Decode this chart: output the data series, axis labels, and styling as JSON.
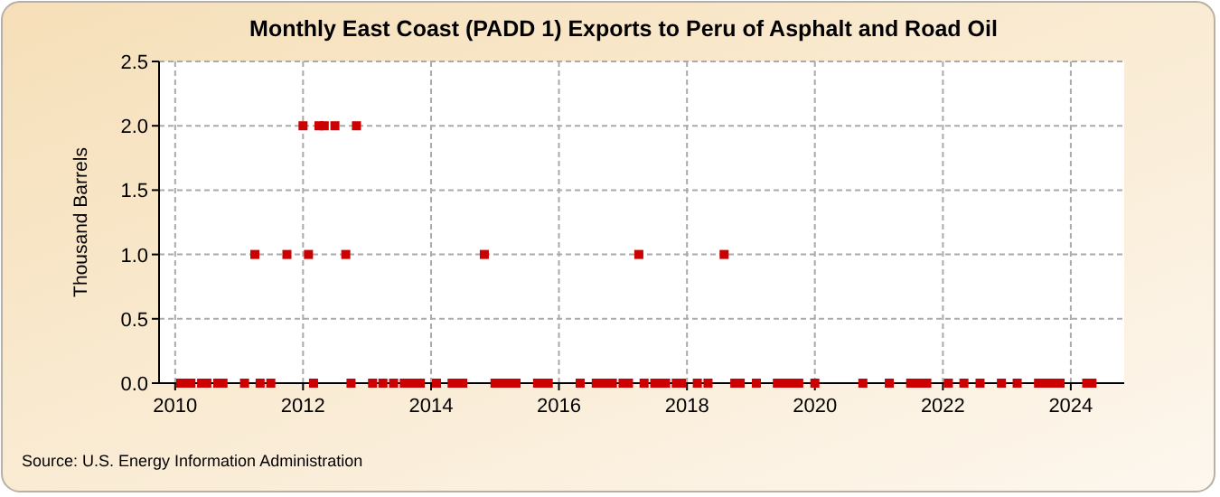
{
  "chart_data": {
    "type": "scatter",
    "title": "Monthly East Coast (PADD 1) Exports to Peru of Asphalt and Road Oil",
    "ylabel": "Thousand Barrels",
    "x": [
      "2010-02",
      "2010-03",
      "2010-04",
      "2010-06",
      "2010-07",
      "2010-09",
      "2010-10",
      "2011-02",
      "2011-04",
      "2011-05",
      "2011-07",
      "2011-10",
      "2012-01",
      "2012-02",
      "2012-03",
      "2012-04",
      "2012-05",
      "2012-07",
      "2012-09",
      "2012-10",
      "2012-11",
      "2013-02",
      "2013-04",
      "2013-06",
      "2013-08",
      "2013-09",
      "2013-10",
      "2013-11",
      "2014-02",
      "2014-05",
      "2014-06",
      "2014-07",
      "2014-11",
      "2015-01",
      "2015-02",
      "2015-03",
      "2015-04",
      "2015-05",
      "2015-09",
      "2015-10",
      "2015-11",
      "2016-05",
      "2016-08",
      "2016-09",
      "2016-10",
      "2016-11",
      "2017-01",
      "2017-02",
      "2017-04",
      "2017-05",
      "2017-07",
      "2017-08",
      "2017-09",
      "2017-11",
      "2017-12",
      "2018-03",
      "2018-05",
      "2018-08",
      "2018-10",
      "2018-11",
      "2019-02",
      "2019-06",
      "2019-07",
      "2019-08",
      "2019-09",
      "2019-10",
      "2020-01",
      "2020-10",
      "2021-03",
      "2021-07",
      "2021-08",
      "2021-09",
      "2021-10",
      "2022-02",
      "2022-05",
      "2022-08",
      "2022-12",
      "2023-03",
      "2023-07",
      "2023-08",
      "2023-09",
      "2023-10",
      "2023-11",
      "2024-04",
      "2024-05"
    ],
    "values": [
      0,
      0,
      0,
      0,
      0,
      0,
      0,
      0,
      1,
      0,
      0,
      1,
      2,
      1,
      0,
      2,
      2,
      2,
      1,
      0,
      2,
      0,
      0,
      0,
      0,
      0,
      0,
      0,
      0,
      0,
      0,
      0,
      1,
      0,
      0,
      0,
      0,
      0,
      0,
      0,
      0,
      0,
      0,
      0,
      0,
      0,
      0,
      0,
      1,
      0,
      0,
      0,
      0,
      0,
      0,
      0,
      0,
      1,
      0,
      0,
      0,
      0,
      0,
      0,
      0,
      0,
      0,
      0,
      0,
      0,
      0,
      0,
      0,
      0,
      0,
      0,
      0,
      0,
      0,
      0,
      0,
      0,
      0,
      0,
      0
    ],
    "color": "#cc0000",
    "marker": "square",
    "grid": true,
    "xlim": [
      "2009-10",
      "2024-11"
    ],
    "xticks": [
      {
        "value": "2010-01",
        "label": "2010"
      },
      {
        "value": "2012-01",
        "label": "2012"
      },
      {
        "value": "2014-01",
        "label": "2014"
      },
      {
        "value": "2016-01",
        "label": "2016"
      },
      {
        "value": "2018-01",
        "label": "2018"
      },
      {
        "value": "2020-01",
        "label": "2020"
      },
      {
        "value": "2022-01",
        "label": "2022"
      },
      {
        "value": "2024-01",
        "label": "2024"
      }
    ],
    "ylim": [
      0,
      2.5
    ],
    "yticks": [
      {
        "value": 0,
        "label": "0.0"
      },
      {
        "value": 0.5,
        "label": "0.5"
      },
      {
        "value": 1,
        "label": "1.0"
      },
      {
        "value": 1.5,
        "label": "1.5"
      },
      {
        "value": 2,
        "label": "2.0"
      },
      {
        "value": 2.5,
        "label": "2.5"
      }
    ],
    "annotations": [
      "Source: U.S. Energy Information Administration"
    ]
  }
}
